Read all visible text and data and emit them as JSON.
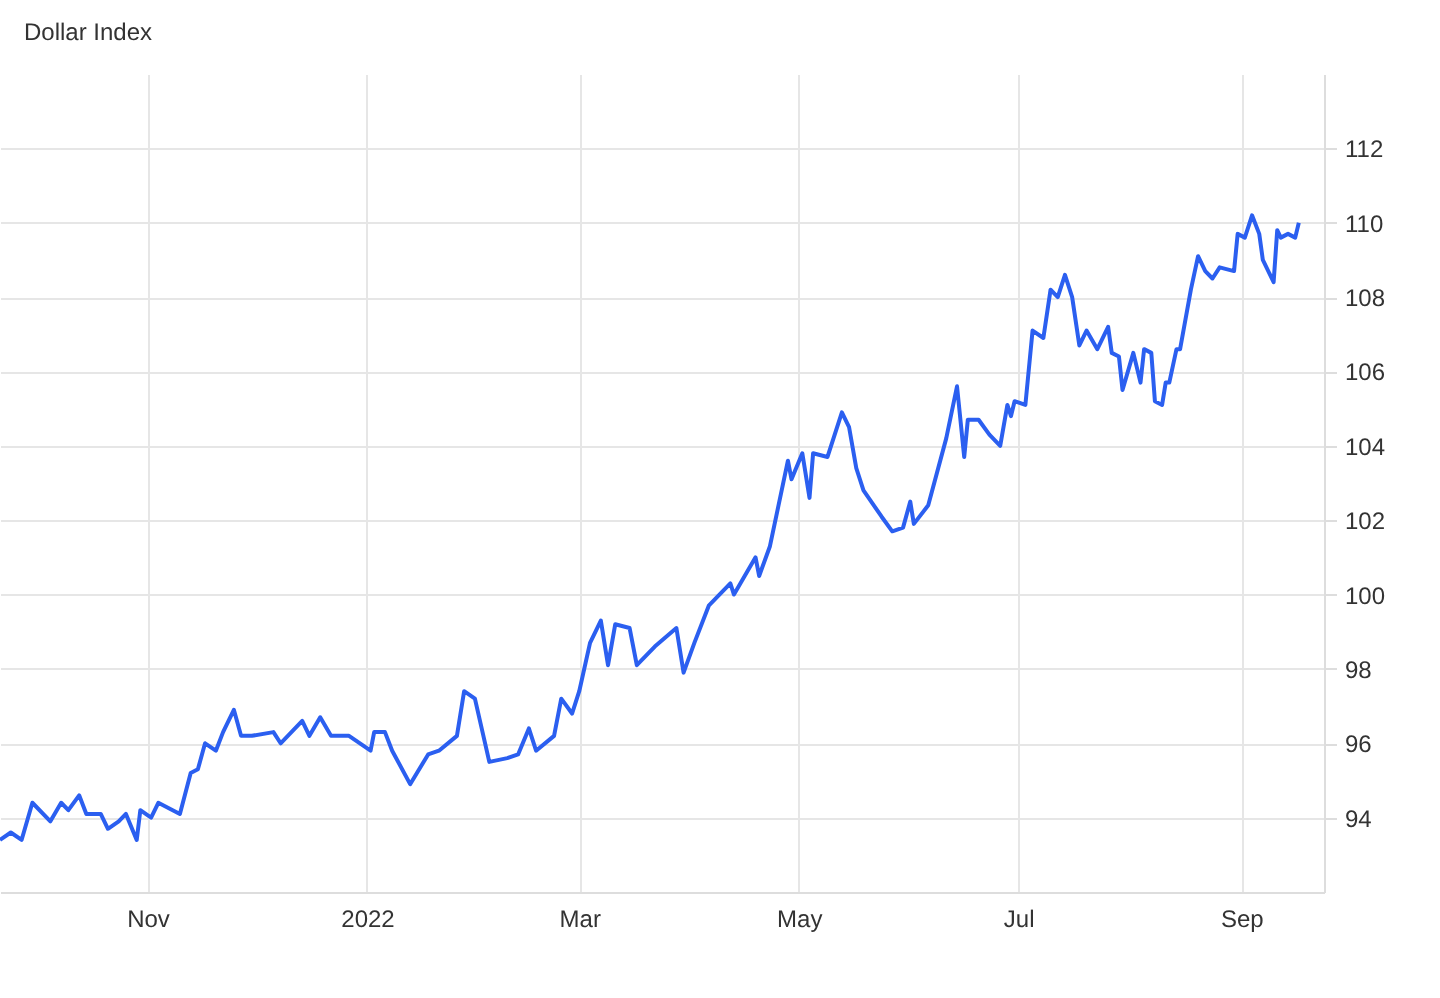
{
  "chart_data": {
    "type": "line",
    "title": "Dollar Index",
    "x": [
      "2021-09-21",
      "2021-09-24",
      "2021-09-27",
      "2021-09-30",
      "2021-10-05",
      "2021-10-08",
      "2021-10-10",
      "2021-10-13",
      "2021-10-15",
      "2021-10-19",
      "2021-10-21",
      "2021-10-24",
      "2021-10-26",
      "2021-10-29",
      "2021-10-30",
      "2021-11-02",
      "2021-11-04",
      "2021-11-10",
      "2021-11-13",
      "2021-11-15",
      "2021-11-17",
      "2021-11-20",
      "2021-11-22",
      "2021-11-25",
      "2021-11-27",
      "2021-11-30",
      "2021-12-06",
      "2021-12-08",
      "2021-12-14",
      "2021-12-16",
      "2021-12-19",
      "2021-12-22",
      "2021-12-27",
      "2022-01-02",
      "2022-01-03",
      "2022-01-06",
      "2022-01-08",
      "2022-01-13",
      "2022-01-18",
      "2022-01-21",
      "2022-01-26",
      "2022-01-28",
      "2022-01-31",
      "2022-02-04",
      "2022-02-09",
      "2022-02-12",
      "2022-02-15",
      "2022-02-17",
      "2022-02-22",
      "2022-02-24",
      "2022-02-27",
      "2022-03-01",
      "2022-03-04",
      "2022-03-07",
      "2022-03-09",
      "2022-03-11",
      "2022-03-15",
      "2022-03-17",
      "2022-03-22",
      "2022-03-28",
      "2022-03-30",
      "2022-04-02",
      "2022-04-06",
      "2022-04-12",
      "2022-04-13",
      "2022-04-19",
      "2022-04-20",
      "2022-04-23",
      "2022-04-28",
      "2022-04-29",
      "2022-05-02",
      "2022-05-04",
      "2022-05-05",
      "2022-05-09",
      "2022-05-13",
      "2022-05-15",
      "2022-05-17",
      "2022-05-19",
      "2022-05-24",
      "2022-05-27",
      "2022-05-30",
      "2022-06-01",
      "2022-06-02",
      "2022-06-06",
      "2022-06-11",
      "2022-06-14",
      "2022-06-16",
      "2022-06-17",
      "2022-06-20",
      "2022-06-23",
      "2022-06-26",
      "2022-06-28",
      "2022-06-29",
      "2022-06-30",
      "2022-07-03",
      "2022-07-05",
      "2022-07-08",
      "2022-07-10",
      "2022-07-12",
      "2022-07-14",
      "2022-07-16",
      "2022-07-18",
      "2022-07-20",
      "2022-07-23",
      "2022-07-26",
      "2022-07-27",
      "2022-07-29",
      "2022-07-30",
      "2022-08-02",
      "2022-08-04",
      "2022-08-05",
      "2022-08-07",
      "2022-08-08",
      "2022-08-10",
      "2022-08-11",
      "2022-08-12",
      "2022-08-14",
      "2022-08-15",
      "2022-08-18",
      "2022-08-20",
      "2022-08-22",
      "2022-08-24",
      "2022-08-26",
      "2022-08-30",
      "2022-08-31",
      "2022-09-02",
      "2022-09-04",
      "2022-09-06",
      "2022-09-07",
      "2022-09-10",
      "2022-09-11",
      "2022-09-12",
      "2022-09-14",
      "2022-09-16",
      "2022-09-17"
    ],
    "series": [
      {
        "color": "#2b5ff0",
        "values": [
          93.4,
          93.6,
          93.4,
          94.4,
          93.9,
          94.4,
          94.2,
          94.6,
          94.1,
          94.1,
          93.7,
          93.9,
          94.1,
          93.4,
          94.2,
          94.0,
          94.4,
          94.1,
          95.2,
          95.3,
          96.0,
          95.8,
          96.3,
          96.9,
          96.2,
          96.2,
          96.3,
          96.0,
          96.6,
          96.2,
          96.7,
          96.2,
          96.2,
          95.8,
          96.3,
          96.3,
          95.8,
          94.9,
          95.7,
          95.8,
          96.2,
          97.4,
          97.2,
          95.5,
          95.6,
          95.7,
          96.4,
          95.8,
          96.2,
          97.2,
          96.8,
          97.4,
          98.7,
          99.3,
          98.1,
          99.2,
          99.1,
          98.1,
          98.6,
          99.1,
          97.9,
          98.7,
          99.7,
          100.3,
          100.0,
          101.0,
          100.5,
          101.3,
          103.6,
          103.1,
          103.8,
          102.6,
          103.8,
          103.7,
          104.9,
          104.5,
          103.4,
          102.8,
          102.1,
          101.7,
          101.8,
          102.5,
          101.9,
          102.4,
          104.2,
          105.6,
          103.7,
          104.7,
          104.7,
          104.3,
          104.0,
          105.1,
          104.8,
          105.2,
          105.1,
          107.1,
          106.9,
          108.2,
          108.0,
          108.6,
          108.0,
          106.7,
          107.1,
          106.6,
          107.2,
          106.5,
          106.4,
          105.5,
          106.5,
          105.7,
          106.6,
          106.5,
          105.2,
          105.1,
          105.7,
          105.7,
          106.6,
          106.6,
          108.2,
          109.1,
          108.7,
          108.5,
          108.8,
          108.7,
          109.7,
          109.6,
          110.2,
          109.7,
          109.0,
          108.4,
          109.8,
          109.6,
          109.7,
          109.6,
          110.0
        ]
      }
    ],
    "xlim": [
      "2021-09-21",
      "2022-09-24"
    ],
    "xticks": [
      {
        "value": "2021-11-01",
        "label": "Nov"
      },
      {
        "value": "2022-01-01",
        "label": "2022"
      },
      {
        "value": "2022-03-01",
        "label": "Mar"
      },
      {
        "value": "2022-05-01",
        "label": "May"
      },
      {
        "value": "2022-07-01",
        "label": "Jul"
      },
      {
        "value": "2022-09-01",
        "label": "Sep"
      }
    ],
    "ylim": [
      92,
      114
    ],
    "yticks": [
      94,
      96,
      98,
      100,
      102,
      104,
      106,
      108,
      110,
      112
    ],
    "grid": true
  }
}
